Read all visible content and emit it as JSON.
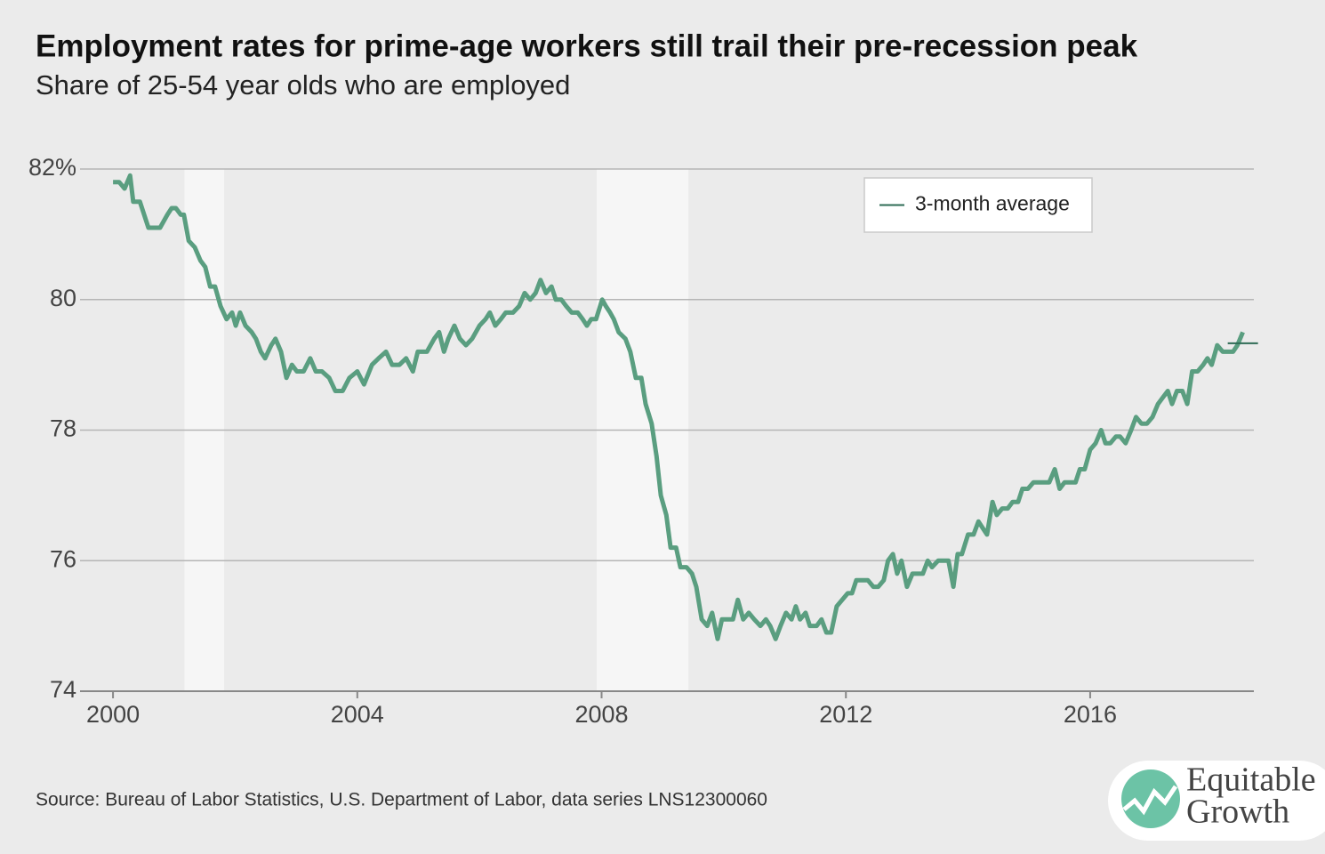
{
  "chart_data": {
    "type": "line",
    "title": "Employment rates for prime-age workers still trail their pre-recession peak",
    "subtitle": "Share of 25-54 year olds who are employed",
    "source": "Source: Bureau of Labor Statistics, U.S. Department of Labor, data series LNS12300060",
    "logo": [
      "Equitable",
      "Growth"
    ],
    "xlim": [
      1999.46,
      2018.68
    ],
    "ylim": [
      74,
      82
    ],
    "xticks": [
      2000,
      2004,
      2008,
      2012,
      2016
    ],
    "yticks": [
      {
        "value": 82,
        "label": "82%"
      },
      80,
      78,
      76,
      74
    ],
    "grid": true,
    "legend": "top-right",
    "recessions": [
      [
        2001.17,
        2001.82
      ],
      [
        2007.92,
        2009.42
      ]
    ],
    "series": [
      {
        "color": "#5a9e80",
        "x": [
          2000.0,
          2000.1,
          2000.19,
          2000.28,
          2000.33,
          2000.44,
          2000.58,
          2000.77,
          2000.89,
          2000.96,
          2001.03,
          2001.11,
          2001.16,
          2001.24,
          2001.34,
          2001.43,
          2001.51,
          2001.59,
          2001.67,
          2001.76,
          2001.86,
          2001.95,
          2002.01,
          2002.08,
          2002.17,
          2002.27,
          2002.34,
          2002.42,
          2002.49,
          2002.59,
          2002.66,
          2002.75,
          2002.84,
          2002.93,
          2003.01,
          2003.12,
          2003.23,
          2003.32,
          2003.42,
          2003.54,
          2003.64,
          2003.76,
          2003.87,
          2004.0,
          2004.11,
          2004.24,
          2004.35,
          2004.47,
          2004.57,
          2004.69,
          2004.8,
          2004.91,
          2004.99,
          2005.14,
          2005.26,
          2005.34,
          2005.42,
          2005.49,
          2005.59,
          2005.68,
          2005.78,
          2005.88,
          2006.0,
          2006.1,
          2006.17,
          2006.26,
          2006.35,
          2006.43,
          2006.55,
          2006.65,
          2006.74,
          2006.83,
          2006.92,
          2007.0,
          2007.09,
          2007.18,
          2007.25,
          2007.34,
          2007.42,
          2007.51,
          2007.61,
          2007.69,
          2007.76,
          2007.83,
          2007.91,
          2008.01,
          2008.07,
          2008.14,
          2008.2,
          2008.28,
          2008.39,
          2008.47,
          2008.56,
          2008.65,
          2008.72,
          2008.82,
          2008.9,
          2008.97,
          2009.06,
          2009.13,
          2009.22,
          2009.29,
          2009.39,
          2009.48,
          2009.55,
          2009.64,
          2009.73,
          2009.81,
          2009.9,
          2009.97,
          2010.06,
          2010.15,
          2010.23,
          2010.32,
          2010.41,
          2010.5,
          2010.6,
          2010.69,
          2010.76,
          2010.85,
          2010.93,
          2011.02,
          2011.11,
          2011.18,
          2011.25,
          2011.34,
          2011.41,
          2011.52,
          2011.6,
          2011.68,
          2011.76,
          2011.85,
          2011.94,
          2012.03,
          2012.1,
          2012.17,
          2012.27,
          2012.36,
          2012.45,
          2012.53,
          2012.62,
          2012.69,
          2012.77,
          2012.84,
          2012.91,
          2013.0,
          2013.09,
          2013.17,
          2013.26,
          2013.34,
          2013.41,
          2013.51,
          2013.61,
          2013.68,
          2013.76,
          2013.83,
          2013.9,
          2014.0,
          2014.09,
          2014.17,
          2014.24,
          2014.31,
          2014.4,
          2014.47,
          2014.56,
          2014.65,
          2014.73,
          2014.82,
          2014.89,
          2014.98,
          2015.07,
          2015.16,
          2015.24,
          2015.33,
          2015.42,
          2015.5,
          2015.58,
          2015.67,
          2015.76,
          2015.83,
          2015.91,
          2016.0,
          2016.09,
          2016.18,
          2016.25,
          2016.33,
          2016.42,
          2016.49,
          2016.58,
          2016.67,
          2016.75,
          2016.84,
          2016.93,
          2017.02,
          2017.11,
          2017.19,
          2017.27,
          2017.34,
          2017.42,
          2017.51,
          2017.59,
          2017.67,
          2017.76,
          2017.85,
          2017.92,
          2017.99,
          2018.08,
          2018.17,
          2018.25,
          2018.34,
          2018.41,
          2018.5
        ],
        "values": [
          81.8,
          81.8,
          81.7,
          81.9,
          81.5,
          81.5,
          81.1,
          81.1,
          81.3,
          81.4,
          81.4,
          81.3,
          81.3,
          80.9,
          80.8,
          80.6,
          80.5,
          80.2,
          80.2,
          79.9,
          79.7,
          79.8,
          79.6,
          79.8,
          79.6,
          79.5,
          79.4,
          79.2,
          79.1,
          79.3,
          79.4,
          79.2,
          78.8,
          79.0,
          78.9,
          78.9,
          79.1,
          78.9,
          78.9,
          78.8,
          78.6,
          78.6,
          78.8,
          78.9,
          78.7,
          79.0,
          79.1,
          79.2,
          79.0,
          79.0,
          79.1,
          78.9,
          79.2,
          79.2,
          79.4,
          79.5,
          79.2,
          79.4,
          79.6,
          79.4,
          79.3,
          79.4,
          79.6,
          79.7,
          79.8,
          79.6,
          79.7,
          79.8,
          79.8,
          79.9,
          80.1,
          80.0,
          80.1,
          80.3,
          80.1,
          80.2,
          80.0,
          80.0,
          79.9,
          79.8,
          79.8,
          79.7,
          79.6,
          79.7,
          79.7,
          80.0,
          79.9,
          79.8,
          79.7,
          79.5,
          79.4,
          79.2,
          78.8,
          78.8,
          78.4,
          78.1,
          77.6,
          77.0,
          76.7,
          76.2,
          76.2,
          75.9,
          75.9,
          75.8,
          75.6,
          75.1,
          75.0,
          75.2,
          74.8,
          75.1,
          75.1,
          75.1,
          75.4,
          75.1,
          75.2,
          75.1,
          75.0,
          75.1,
          75.0,
          74.8,
          75.0,
          75.2,
          75.1,
          75.3,
          75.1,
          75.2,
          75.0,
          75.0,
          75.1,
          74.9,
          74.9,
          75.3,
          75.4,
          75.5,
          75.5,
          75.7,
          75.7,
          75.7,
          75.6,
          75.6,
          75.7,
          76.0,
          76.1,
          75.8,
          76.0,
          75.6,
          75.8,
          75.8,
          75.8,
          76.0,
          75.9,
          76.0,
          76.0,
          76.0,
          75.6,
          76.1,
          76.1,
          76.4,
          76.4,
          76.6,
          76.5,
          76.4,
          76.9,
          76.7,
          76.8,
          76.8,
          76.9,
          76.9,
          77.1,
          77.1,
          77.2,
          77.2,
          77.2,
          77.2,
          77.4,
          77.1,
          77.2,
          77.2,
          77.2,
          77.4,
          77.4,
          77.7,
          77.8,
          78.0,
          77.8,
          77.8,
          77.9,
          77.9,
          77.8,
          78.0,
          78.2,
          78.1,
          78.1,
          78.2,
          78.4,
          78.5,
          78.6,
          78.4,
          78.6,
          78.6,
          78.4,
          78.9,
          78.9,
          79.0,
          79.1,
          79.0,
          79.3,
          79.2,
          79.2,
          79.2,
          79.3,
          79.5
        ]
      },
      {
        "name": "3-month average",
        "color": "#2e6b55",
        "x": [
          2018.5
        ],
        "values": [
          79.33
        ]
      }
    ]
  }
}
